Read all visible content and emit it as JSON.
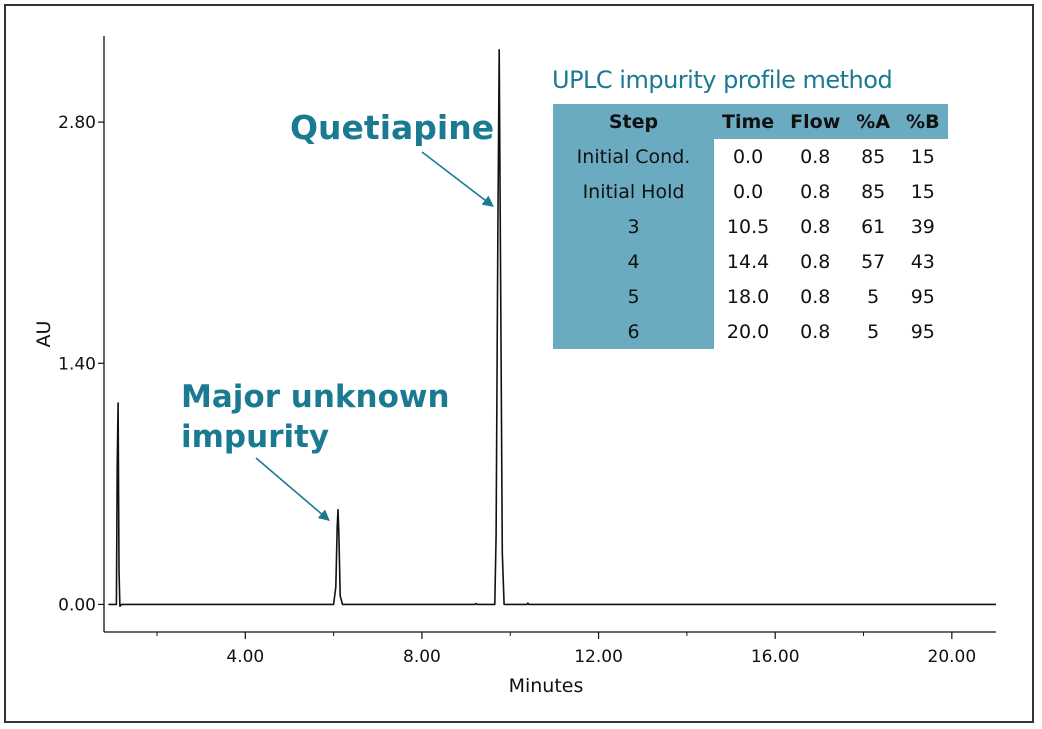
{
  "chart_data": {
    "type": "line",
    "xlabel": "Minutes",
    "ylabel": "AU",
    "xlim": [
      0.8,
      21.0
    ],
    "ylim": [
      -0.16,
      3.3
    ],
    "x_ticks": [
      4.0,
      8.0,
      12.0,
      16.0,
      20.0
    ],
    "x_tick_labels": [
      "4.00",
      "8.00",
      "12.00",
      "16.00",
      "20.00"
    ],
    "x_minor_ticks": [
      2.0,
      6.0,
      10.0,
      14.0,
      18.0
    ],
    "y_ticks": [
      0.0,
      1.4,
      2.8
    ],
    "y_tick_labels": [
      "0.00",
      "1.40",
      "2.80"
    ],
    "series": [
      {
        "color": "#111111",
        "x": [
          0.9,
          1.08,
          1.1,
          1.12,
          1.14,
          1.16,
          1.2,
          1.3,
          6.0,
          6.05,
          6.08,
          6.1,
          6.12,
          6.15,
          6.2,
          9.2,
          9.22,
          9.25,
          9.65,
          9.68,
          9.72,
          9.75,
          9.78,
          9.82,
          9.86,
          10.0,
          10.38,
          10.4,
          10.42,
          21.0
        ],
        "y": [
          0.0,
          0.0,
          0.8,
          1.17,
          0.2,
          -0.01,
          0.0,
          0.0,
          0.0,
          0.1,
          0.45,
          0.55,
          0.4,
          0.05,
          0.0,
          0.0,
          0.005,
          0.0,
          0.0,
          0.4,
          2.2,
          3.22,
          2.0,
          0.3,
          0.0,
          0.0,
          0.0,
          0.008,
          0.0,
          0.0
        ]
      }
    ],
    "annotations": [
      {
        "text": "Quetiapine",
        "x": 9.7,
        "y": 2.3
      },
      {
        "text": "Major unknown impurity",
        "lines": [
          "Major unknown",
          "impurity"
        ],
        "x": 6.1,
        "y": 0.5
      }
    ]
  },
  "method_table": {
    "title": "UPLC impurity profile method",
    "headers": [
      "Step",
      "Time",
      "Flow",
      "%A",
      "%B"
    ],
    "rows": [
      [
        "Initial Cond.",
        "0.0",
        "0.8",
        "85",
        "15"
      ],
      [
        "Initial Hold",
        "0.0",
        "0.8",
        "85",
        "15"
      ],
      [
        "3",
        "10.5",
        "0.8",
        "61",
        "39"
      ],
      [
        "4",
        "14.4",
        "0.8",
        "57",
        "43"
      ],
      [
        "5",
        "18.0",
        "0.8",
        "5",
        "95"
      ],
      [
        "6",
        "20.0",
        "0.8",
        "5",
        "95"
      ]
    ],
    "accent_color": "#6aabc1",
    "title_color": "#1a7a92"
  }
}
